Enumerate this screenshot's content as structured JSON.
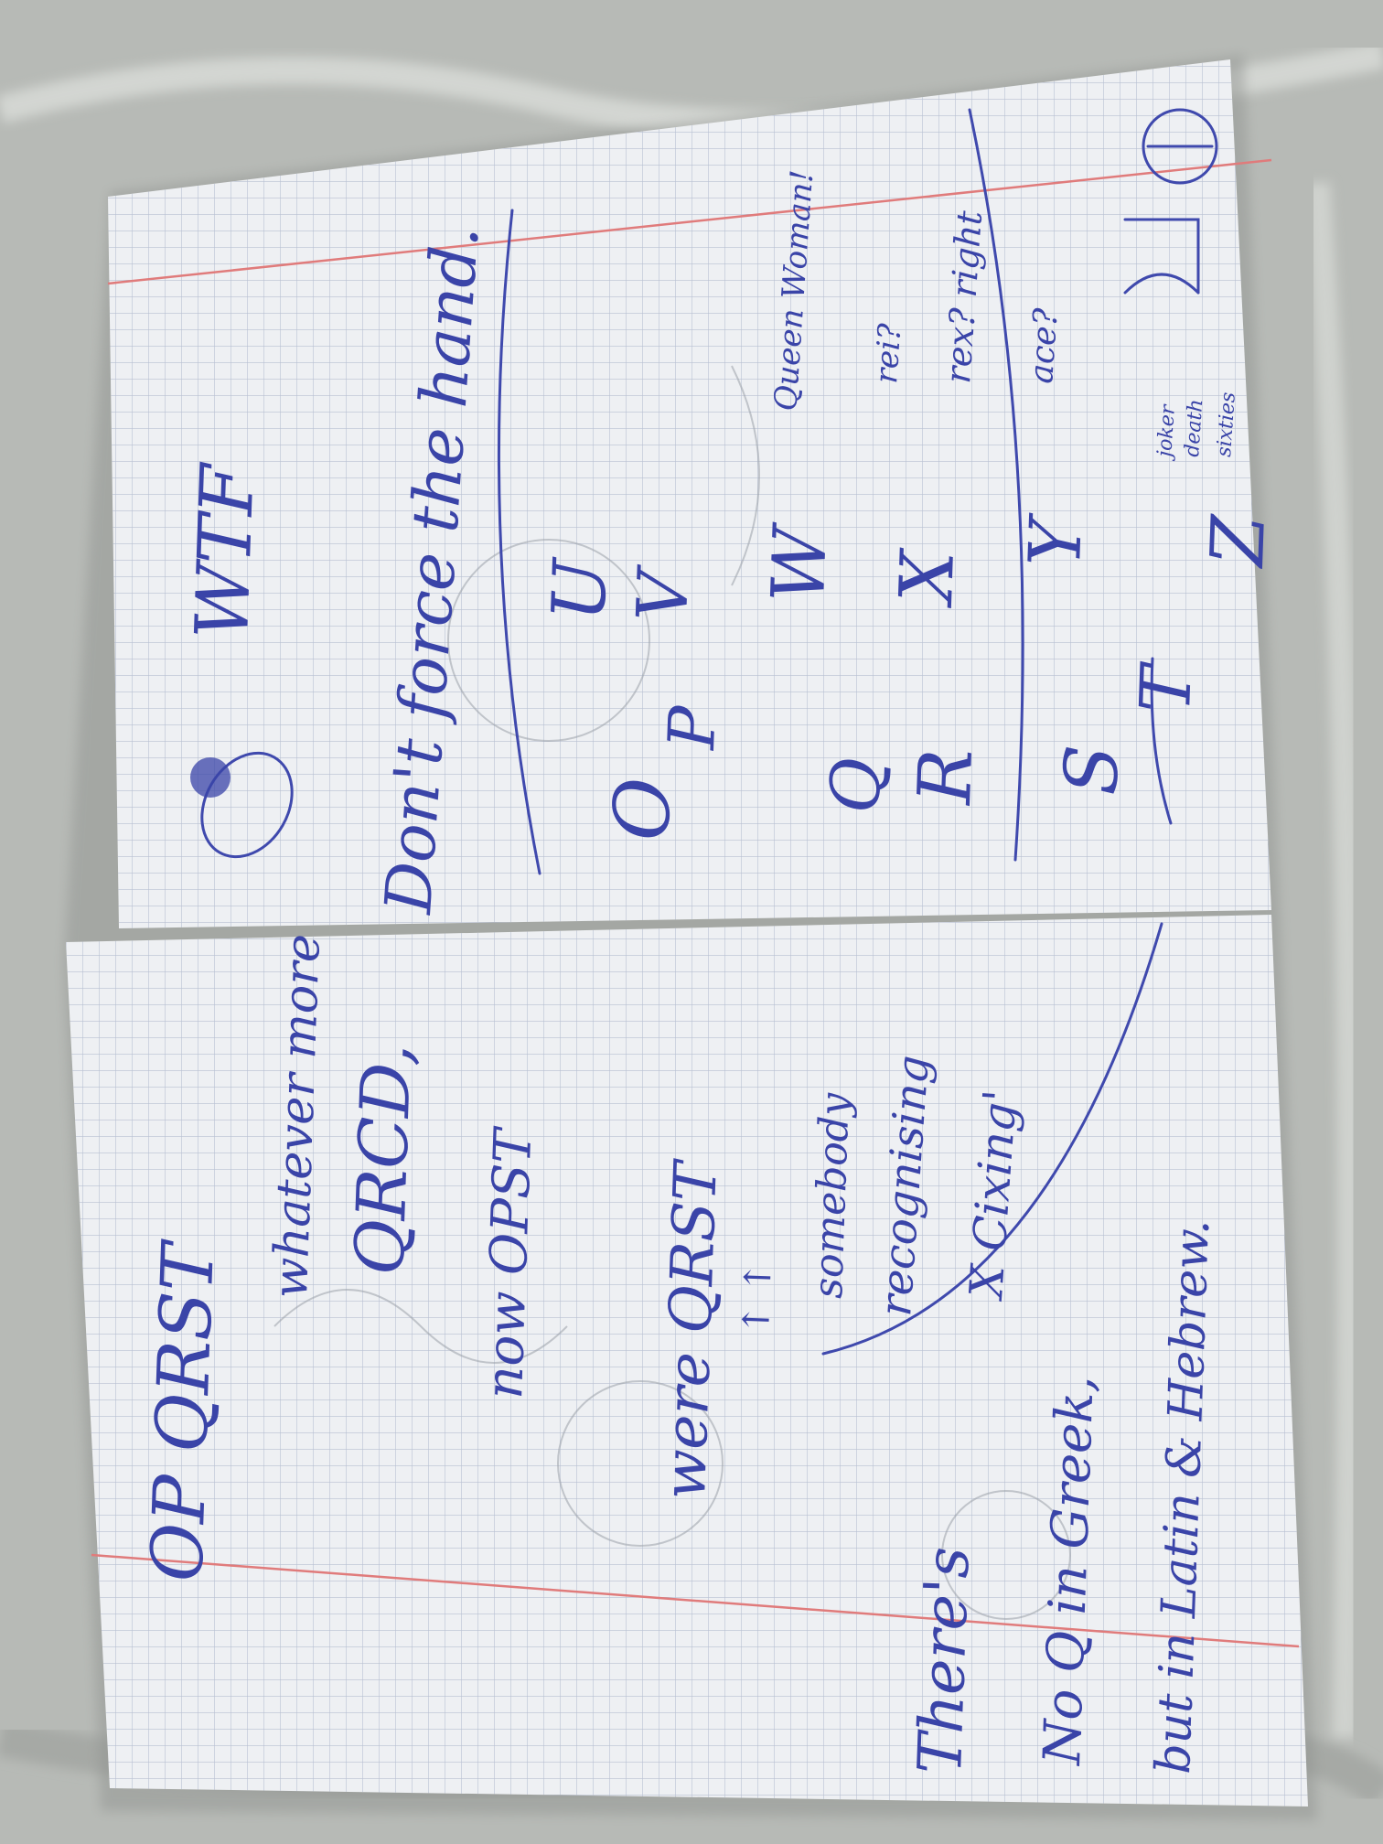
{
  "colors": {
    "background_cloth": "#b9bcb8",
    "paper": "#eef0f3",
    "grid": "#aeb7cc",
    "margin_line": "#e07b7b",
    "ink": "#3a44a8"
  },
  "left_page": {
    "lines": [
      "OP QRST",
      "whatever more",
      "QRCD,",
      "now OPST",
      "were QRST",
      "↑ ↑",
      "somebody",
      "recognising",
      "X Cixing'",
      "There's",
      "No Q in Greek,",
      "but in Latin & Hebrew."
    ]
  },
  "right_page": {
    "lines": [
      "WTF",
      "Don't force the hand.",
      "Queen Woman!",
      "rei?",
      "rex? right",
      "ace?",
      "joker",
      "death",
      "sixties"
    ],
    "letters": [
      "O",
      "P",
      "Q",
      "R",
      "S",
      "T",
      "U",
      "V",
      "W",
      "X",
      "Y",
      "Z"
    ]
  }
}
